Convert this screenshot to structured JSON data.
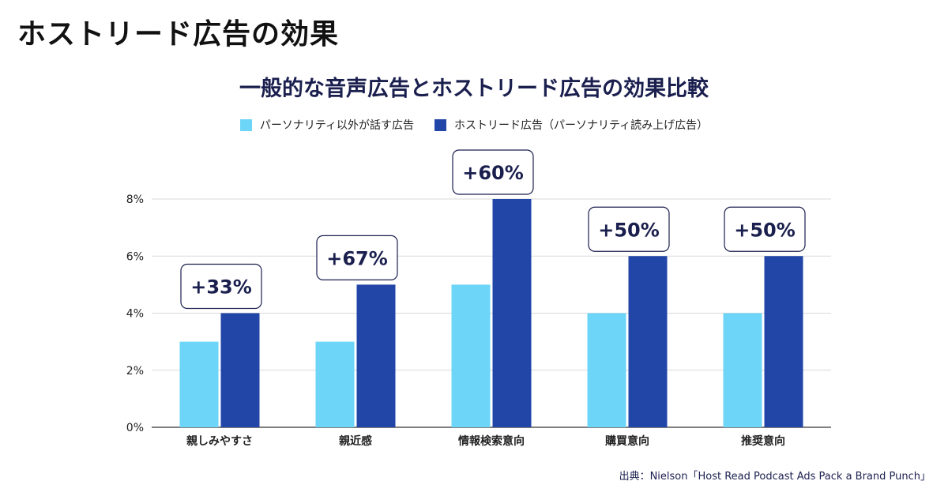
{
  "header": {
    "title": "ホストリード広告の効果"
  },
  "source": "出典：Nielson「Host Read Podcast Ads Pack a Brand Punch」",
  "chart_data": {
    "type": "bar",
    "title": "一般的な音声広告とホストリード広告の効果比較",
    "xlabel": "",
    "ylabel": "",
    "ylim": [
      0,
      8
    ],
    "yticks": [
      "0%",
      "2%",
      "4%",
      "6%",
      "8%"
    ],
    "grid": true,
    "legend_position": "top",
    "categories": [
      "親しみやすさ",
      "親近感",
      "情報検索意向",
      "購買意向",
      "推奨意向"
    ],
    "series": [
      {
        "name": "パーソナリティ以外が話す広告",
        "color": "#6dd5f7",
        "values": [
          3,
          3,
          5,
          4,
          4
        ]
      },
      {
        "name": "ホストリード広告（パーソナリティ読み上げ広告）",
        "color": "#2246a8",
        "values": [
          4,
          5,
          8,
          6,
          6
        ]
      }
    ],
    "annotations": [
      "+33%",
      "+67%",
      "+60%",
      "+50%",
      "+50%"
    ]
  }
}
